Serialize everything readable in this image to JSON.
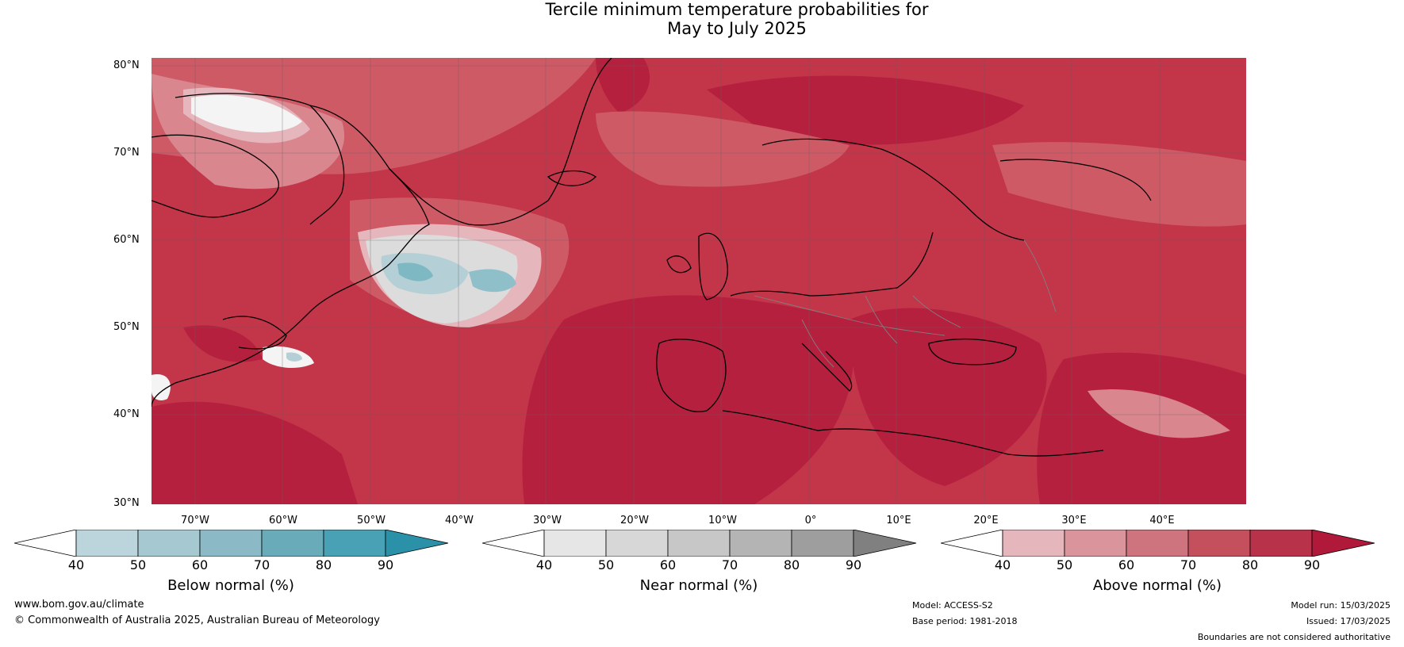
{
  "title": {
    "line1": "Tercile minimum temperature probabilities for",
    "line2": "May to July 2025"
  },
  "map": {
    "lat_labels": [
      "80°N",
      "70°N",
      "60°N",
      "50°N",
      "40°N",
      "30°N"
    ],
    "lon_labels": [
      "70°W",
      "60°W",
      "50°W",
      "40°W",
      "30°W",
      "20°W",
      "10°W",
      "0°",
      "10°E",
      "20°E",
      "30°E",
      "40°E"
    ],
    "extent": {
      "lon": [
        -75,
        50
      ],
      "lat": [
        30,
        81
      ]
    },
    "colors": {
      "above_90": "#b5203f",
      "above_80": "#c33549",
      "above_70": "#ce5a66",
      "above_60": "#d9868f",
      "above_50": "#e6b6bd",
      "near_white": "#f4f4f4",
      "near_grey": "#dcdcdc",
      "below_50": "#b4cfd6",
      "below_70": "#7eb8c3",
      "coast": "#000000",
      "borders": "#808080"
    }
  },
  "colorbars": {
    "below": {
      "caption": "Below normal (%)",
      "ticks": [
        "40",
        "50",
        "60",
        "70",
        "80",
        "90"
      ],
      "colors": [
        "#ffffff",
        "#bcd4dc",
        "#a6c8d0",
        "#8bb9c6",
        "#6aabba",
        "#48a1b4",
        "#2a91a8"
      ]
    },
    "near": {
      "caption": "Near normal (%)",
      "ticks": [
        "40",
        "50",
        "60",
        "70",
        "80",
        "90"
      ],
      "colors": [
        "#ffffff",
        "#e6e6e6",
        "#d7d7d7",
        "#c7c7c7",
        "#b4b4b4",
        "#9e9e9e",
        "#808080"
      ]
    },
    "above": {
      "caption": "Above normal (%)",
      "ticks": [
        "40",
        "50",
        "60",
        "70",
        "80",
        "90"
      ],
      "colors": [
        "#ffffff",
        "#e6b6bd",
        "#d9949c",
        "#ce747e",
        "#c4505e",
        "#b8334a",
        "#b0193a"
      ]
    }
  },
  "footer": {
    "website": "www.bom.gov.au/climate",
    "copyright": "© Commonwealth of Australia 2025, Australian Bureau of Meteorology",
    "model": "Model: ACCESS-S2",
    "base_period": "Base period: 1981-2018",
    "model_run": "Model run: 15/03/2025",
    "issued": "Issued: 17/03/2025",
    "disclaimer": "Boundaries are not considered authoritative"
  }
}
